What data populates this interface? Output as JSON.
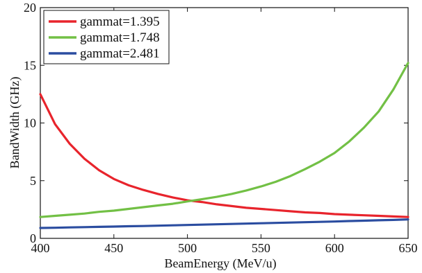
{
  "chart_data": {
    "type": "line",
    "xlabel": "BeamEnergy (MeV/u)",
    "ylabel": "BandWidth (GHz)",
    "xlim": [
      400,
      650
    ],
    "ylim": [
      0,
      20
    ],
    "xticks": [
      400,
      450,
      500,
      550,
      600,
      650
    ],
    "yticks": [
      0,
      5,
      10,
      15,
      20
    ],
    "grid": false,
    "legend_position": "top-left",
    "series": [
      {
        "name": "gammat=1.395",
        "color": "#e8242c",
        "x": [
          400,
          410,
          420,
          430,
          440,
          450,
          460,
          470,
          480,
          490,
          500,
          510,
          520,
          530,
          540,
          550,
          560,
          570,
          580,
          590,
          600,
          610,
          620,
          630,
          640,
          650
        ],
        "y": [
          12.5,
          9.9,
          8.2,
          6.9,
          5.9,
          5.15,
          4.6,
          4.2,
          3.85,
          3.55,
          3.3,
          3.15,
          2.95,
          2.8,
          2.65,
          2.55,
          2.45,
          2.35,
          2.25,
          2.2,
          2.1,
          2.05,
          2.0,
          1.95,
          1.9,
          1.85
        ]
      },
      {
        "name": "gammat=1.748",
        "color": "#72c045",
        "x": [
          400,
          410,
          420,
          430,
          440,
          450,
          460,
          470,
          480,
          490,
          500,
          510,
          520,
          530,
          540,
          550,
          560,
          570,
          580,
          590,
          600,
          610,
          620,
          630,
          640,
          650
        ],
        "y": [
          1.85,
          1.95,
          2.05,
          2.15,
          2.3,
          2.4,
          2.55,
          2.7,
          2.85,
          3.0,
          3.2,
          3.4,
          3.6,
          3.85,
          4.15,
          4.5,
          4.9,
          5.4,
          6.0,
          6.65,
          7.4,
          8.4,
          9.6,
          11.0,
          12.9,
          15.2
        ]
      },
      {
        "name": "gammat=2.481",
        "color": "#2b4da0",
        "x": [
          400,
          410,
          420,
          430,
          440,
          450,
          460,
          470,
          480,
          490,
          500,
          510,
          520,
          530,
          540,
          550,
          560,
          570,
          580,
          590,
          600,
          610,
          620,
          630,
          640,
          650
        ],
        "y": [
          0.9,
          0.92,
          0.95,
          0.97,
          1.0,
          1.02,
          1.05,
          1.07,
          1.1,
          1.13,
          1.16,
          1.19,
          1.22,
          1.25,
          1.28,
          1.31,
          1.34,
          1.37,
          1.4,
          1.43,
          1.46,
          1.5,
          1.53,
          1.57,
          1.6,
          1.64
        ]
      }
    ]
  }
}
